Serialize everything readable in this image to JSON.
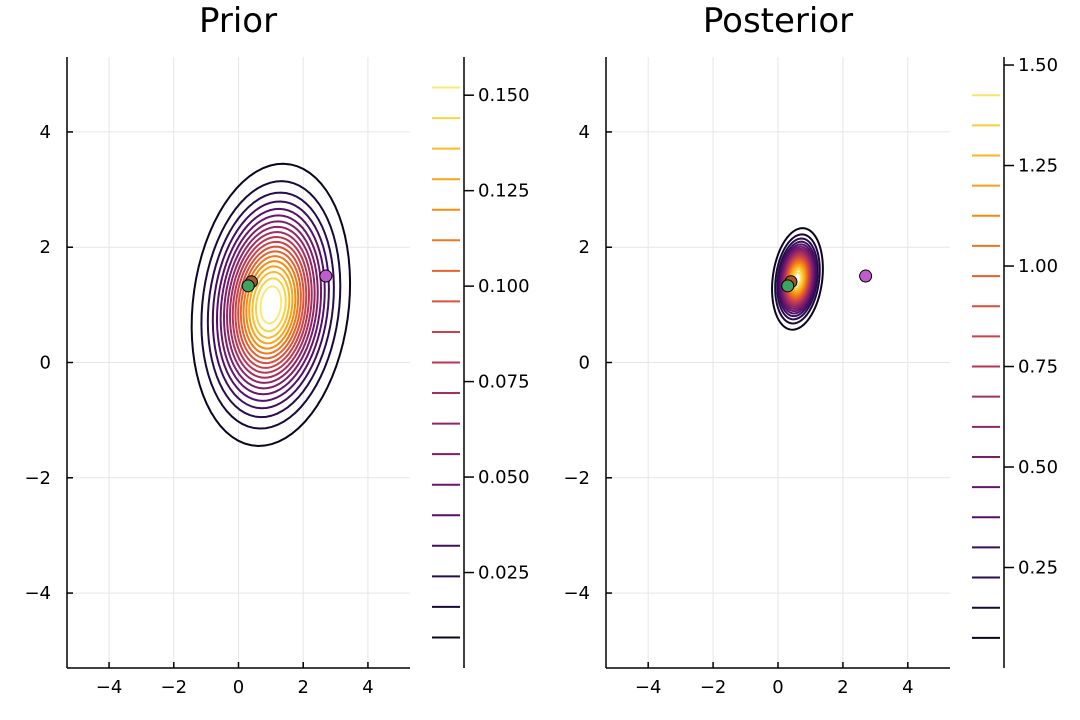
{
  "chart_data": [
    {
      "type": "contour",
      "title": "Prior",
      "xlim": [
        -5.3,
        5.3
      ],
      "ylim": [
        -5.3,
        5.3
      ],
      "xticks": [
        -4,
        -2,
        0,
        2,
        4
      ],
      "yticks": [
        -4,
        -2,
        0,
        2,
        4
      ],
      "xtick_labels": [
        "−4",
        "−2",
        "0",
        "2",
        "4"
      ],
      "ytick_labels": [
        "−4",
        "−2",
        "0",
        "2",
        "4"
      ],
      "grid": true,
      "distribution": {
        "mean": [
          1.0,
          1.0
        ],
        "sigma_x": 1.0,
        "sigma_y": 1.0,
        "correlation": 0.15,
        "peak_density": 0.16
      },
      "contour_levels": [
        0.008,
        0.016,
        0.024,
        0.032,
        0.04,
        0.048,
        0.056,
        0.064,
        0.072,
        0.08,
        0.088,
        0.096,
        0.104,
        0.112,
        0.12,
        0.128,
        0.136,
        0.144,
        0.152
      ],
      "colorbar": {
        "min": 0.0,
        "max": 0.16,
        "ticks": [
          0.025,
          0.05,
          0.075,
          0.1,
          0.125,
          0.15
        ],
        "tick_labels": [
          "0.025",
          "0.050",
          "0.075",
          "0.100",
          "0.125",
          "0.150"
        ],
        "colormap": "inferno"
      },
      "points": [
        {
          "x": 0.4,
          "y": 1.4,
          "color": "#a65628"
        },
        {
          "x": 0.3,
          "y": 1.33,
          "color": "#3da35d"
        },
        {
          "x": 2.7,
          "y": 1.5,
          "color": "#c15ccf"
        }
      ]
    },
    {
      "type": "contour",
      "title": "Posterior",
      "xlim": [
        -5.3,
        5.3
      ],
      "ylim": [
        -5.3,
        5.3
      ],
      "xticks": [
        -4,
        -2,
        0,
        2,
        4
      ],
      "yticks": [
        -4,
        -2,
        0,
        2,
        4
      ],
      "xtick_labels": [
        "−4",
        "−2",
        "0",
        "2",
        "4"
      ],
      "ytick_labels": [
        "−4",
        "−2",
        "0",
        "2",
        "4"
      ],
      "grid": true,
      "distribution": {
        "mean": [
          0.6,
          1.45
        ],
        "sigma_x": 0.32,
        "sigma_y": 0.36,
        "correlation": 0.2,
        "peak_density": 1.5
      },
      "contour_levels": [
        0.075,
        0.15,
        0.225,
        0.3,
        0.375,
        0.45,
        0.525,
        0.6,
        0.675,
        0.75,
        0.825,
        0.9,
        0.975,
        1.05,
        1.125,
        1.2,
        1.275,
        1.35,
        1.425
      ],
      "colorbar": {
        "min": 0.0,
        "max": 1.52,
        "ticks": [
          0.25,
          0.5,
          0.75,
          1.0,
          1.25,
          1.5
        ],
        "tick_labels": [
          "0.25",
          "0.50",
          "0.75",
          "1.00",
          "1.25",
          "1.50"
        ],
        "colormap": "inferno"
      },
      "points": [
        {
          "x": 0.4,
          "y": 1.4,
          "color": "#a65628"
        },
        {
          "x": 0.3,
          "y": 1.33,
          "color": "#3da35d"
        },
        {
          "x": 2.7,
          "y": 1.5,
          "color": "#c15ccf"
        }
      ]
    }
  ]
}
